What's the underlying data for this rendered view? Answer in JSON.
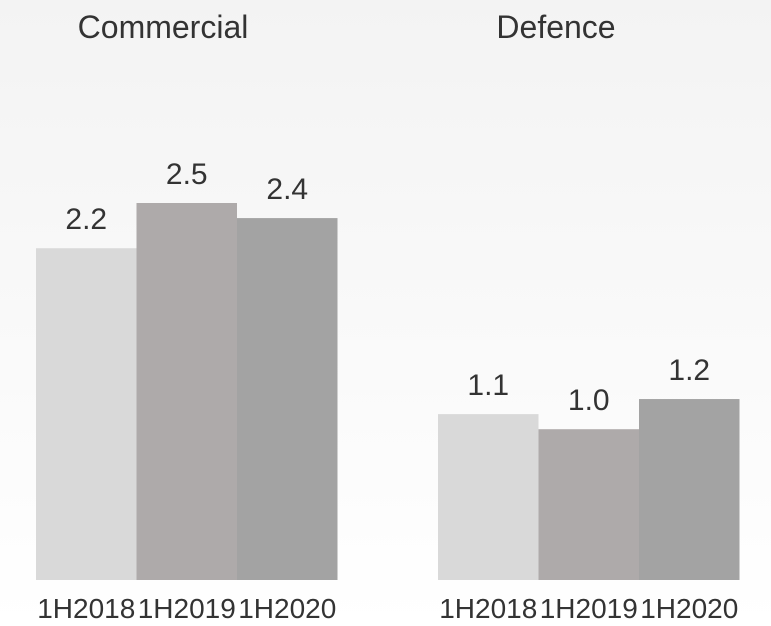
{
  "chart_data": [
    {
      "type": "bar",
      "title": "Commercial",
      "categories": [
        "1H2018",
        "1H2019",
        "1H2020"
      ],
      "values": [
        2.2,
        2.5,
        2.4
      ],
      "value_labels": [
        "2.2",
        "2.5",
        "2.4"
      ],
      "ylim": [
        0,
        2.5
      ],
      "grid": false,
      "colors": [
        "#d9d9d9",
        "#aeaaaa",
        "#a3a3a3"
      ]
    },
    {
      "type": "bar",
      "title": "Defence",
      "categories": [
        "1H2018",
        "1H2019",
        "1H2020"
      ],
      "values": [
        1.1,
        1.0,
        1.2
      ],
      "value_labels": [
        "1.1",
        "1.0",
        "1.2"
      ],
      "ylim": [
        0,
        2.5
      ],
      "grid": false,
      "colors": [
        "#d9d9d9",
        "#aeaaaa",
        "#a3a3a3"
      ]
    }
  ]
}
